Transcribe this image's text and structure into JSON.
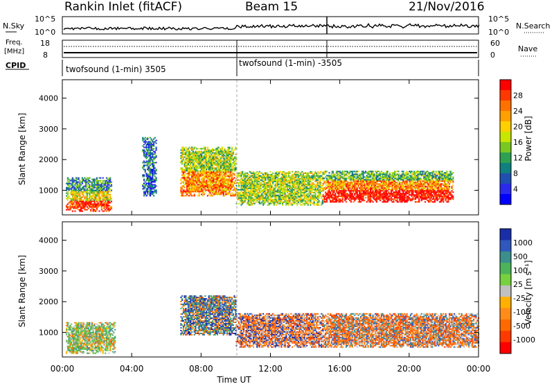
{
  "header": {
    "station": "Rankin Inlet (fitACF)",
    "beam": "Beam 15",
    "date": "21/Nov/2016"
  },
  "noise_panel": {
    "left_label": "N.Sky",
    "left_ticks": [
      "10^5",
      "10^0"
    ],
    "right_label": "N.Search",
    "right_ticks": [
      "10^5",
      "10^0"
    ]
  },
  "freq_panel": {
    "left_label_line1": "Freq.",
    "left_label_line2": "[MHz]",
    "left_ticks": [
      "18",
      "8"
    ],
    "right_label": "Nave",
    "right_ticks": [
      "60",
      "0"
    ]
  },
  "cpid": {
    "label": "CPID",
    "segments": [
      "twofsound (1-min) 3505",
      "twofsound (1-min) -3505"
    ]
  },
  "chart_data": [
    {
      "type": "heatmap",
      "name": "power",
      "ylabel": "Slant Range [km]",
      "ylim": [
        200,
        4600
      ],
      "yticks": [
        "4000",
        "3000",
        "2000",
        "1000"
      ],
      "xlim_hours": [
        0,
        24
      ],
      "xticks": [
        "00:00",
        "04:00",
        "08:00",
        "12:00",
        "16:00",
        "20:00",
        "00:00"
      ],
      "colorbar": {
        "label": "Power [dB]",
        "ticks": [
          "28",
          "24",
          "20",
          "16",
          "12",
          "8",
          "4"
        ],
        "colors": [
          "#ff0000",
          "#ff3800",
          "#ff7200",
          "#ffa000",
          "#ffd000",
          "#c8e600",
          "#79c822",
          "#2ea052",
          "#0f7f7f",
          "#1f4fb0",
          "#2a2aee",
          "#0000ff"
        ]
      },
      "regions": [
        {
          "t": [
            0.2,
            2.8
          ],
          "r": [
            300,
            1400
          ],
          "level": "mixed-high"
        },
        {
          "t": [
            4.6,
            5.4
          ],
          "r": [
            800,
            2700
          ],
          "level": "low"
        },
        {
          "t": [
            6.8,
            10.0
          ],
          "r": [
            800,
            2400
          ],
          "level": "mid"
        },
        {
          "t": [
            10.0,
            15.0
          ],
          "r": [
            500,
            1600
          ],
          "level": "low-mid"
        },
        {
          "t": [
            15.0,
            22.5
          ],
          "r": [
            600,
            1600
          ],
          "level": "high"
        }
      ]
    },
    {
      "type": "heatmap",
      "name": "velocity",
      "ylabel": "Slant Range [km]",
      "ylim": [
        200,
        4600
      ],
      "yticks": [
        "4000",
        "3000",
        "2000",
        "1000"
      ],
      "xlim_hours": [
        0,
        24
      ],
      "xticks": [
        "00:00",
        "04:00",
        "08:00",
        "12:00",
        "16:00",
        "20:00",
        "00:00"
      ],
      "xlabel": "Time UT",
      "colorbar": {
        "label": "Velocity [m s⁻¹]",
        "ticks": [
          "1000",
          "500",
          "100",
          "25",
          "-25",
          "-100",
          "-500",
          "-1000"
        ],
        "colors": [
          "#1a2ea8",
          "#2f57bd",
          "#3b8e8c",
          "#4cb35a",
          "#77d03e",
          "#c0c0c0",
          "#ffb000",
          "#ff8c1a",
          "#ff6a00",
          "#ff3a00",
          "#ff0000"
        ]
      },
      "regions": [
        {
          "t": [
            0.2,
            3.0
          ],
          "r": [
            300,
            1300
          ],
          "level": "green-mixed"
        },
        {
          "t": [
            6.8,
            10.0
          ],
          "r": [
            900,
            2200
          ],
          "level": "blue-mixed"
        },
        {
          "t": [
            10.0,
            15.0
          ],
          "r": [
            500,
            1600
          ],
          "level": "orange-blue"
        },
        {
          "t": [
            15.0,
            24.0
          ],
          "r": [
            500,
            1600
          ],
          "level": "orange-gray"
        }
      ]
    }
  ]
}
